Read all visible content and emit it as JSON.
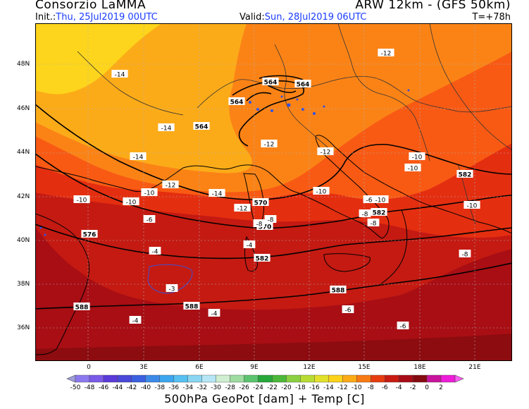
{
  "header": {
    "title_left": "Consorzio LaMMA",
    "title_right": "ARW 12km - (GFS 50km)",
    "init_label": "Init.:",
    "init_value": "Thu, 25Jul2019 00UTC",
    "valid_label": "Valid:",
    "valid_value": "Sun, 28Jul2019 06UTC",
    "step": "T=+78h"
  },
  "map": {
    "lat_labels": [
      "48N",
      "46N",
      "44N",
      "42N",
      "40N",
      "38N",
      "36N"
    ],
    "lon_labels": [
      "0",
      "3E",
      "6E",
      "9E",
      "12E",
      "15E",
      "18E",
      "21E"
    ],
    "lat_values": [
      48,
      46,
      44,
      42,
      40,
      38,
      36
    ],
    "lon_values": [
      0,
      3,
      6,
      9,
      12,
      15,
      18,
      21
    ],
    "geopotential_labels": [
      "564",
      "564",
      "564",
      "564",
      "570",
      "570",
      "576",
      "582",
      "582",
      "582",
      "588",
      "588",
      "588"
    ],
    "temperature_labels": [
      "-12",
      "-14",
      "-14",
      "-14",
      "-12",
      "-12",
      "-10",
      "-10",
      "-12",
      "-14",
      "-10",
      "-10",
      "-10",
      "-12",
      "-10",
      "-6",
      "-8",
      "-6",
      "-8",
      "-8",
      "-8",
      "-4",
      "-4",
      "-3",
      "-4",
      "-4",
      "-6",
      "-6",
      "-8",
      "-10",
      "-10"
    ]
  },
  "legend": {
    "ticks": [
      "-50",
      "-48",
      "-46",
      "-44",
      "-42",
      "-40",
      "-38",
      "-36",
      "-34",
      "-32",
      "-30",
      "-28",
      "-26",
      "-24",
      "-22",
      "-20",
      "-18",
      "-16",
      "-14",
      "-12",
      "-10",
      "-8",
      "-6",
      "-4",
      "-2",
      "0",
      "2"
    ],
    "colors": [
      "#9e9edc",
      "#8c78ee",
      "#7a5ae8",
      "#5a3ad8",
      "#4a48d8",
      "#3a60e0",
      "#3c8ae8",
      "#3ca6ee",
      "#56c0f0",
      "#8ad6f2",
      "#b6e6f6",
      "#cfefd0",
      "#9edca0",
      "#5cc46e",
      "#26a83a",
      "#4cb83a",
      "#8ad040",
      "#b8dc34",
      "#e2e02a",
      "#fcd21a",
      "#fcaa16",
      "#f87a12",
      "#e63c10",
      "#c81c12",
      "#a80c16",
      "#840a10",
      "#c8149c",
      "#ee1cd8",
      "#ff5cf6"
    ],
    "title": "500hPa GeoPot [dam] + Temp [C]"
  }
}
